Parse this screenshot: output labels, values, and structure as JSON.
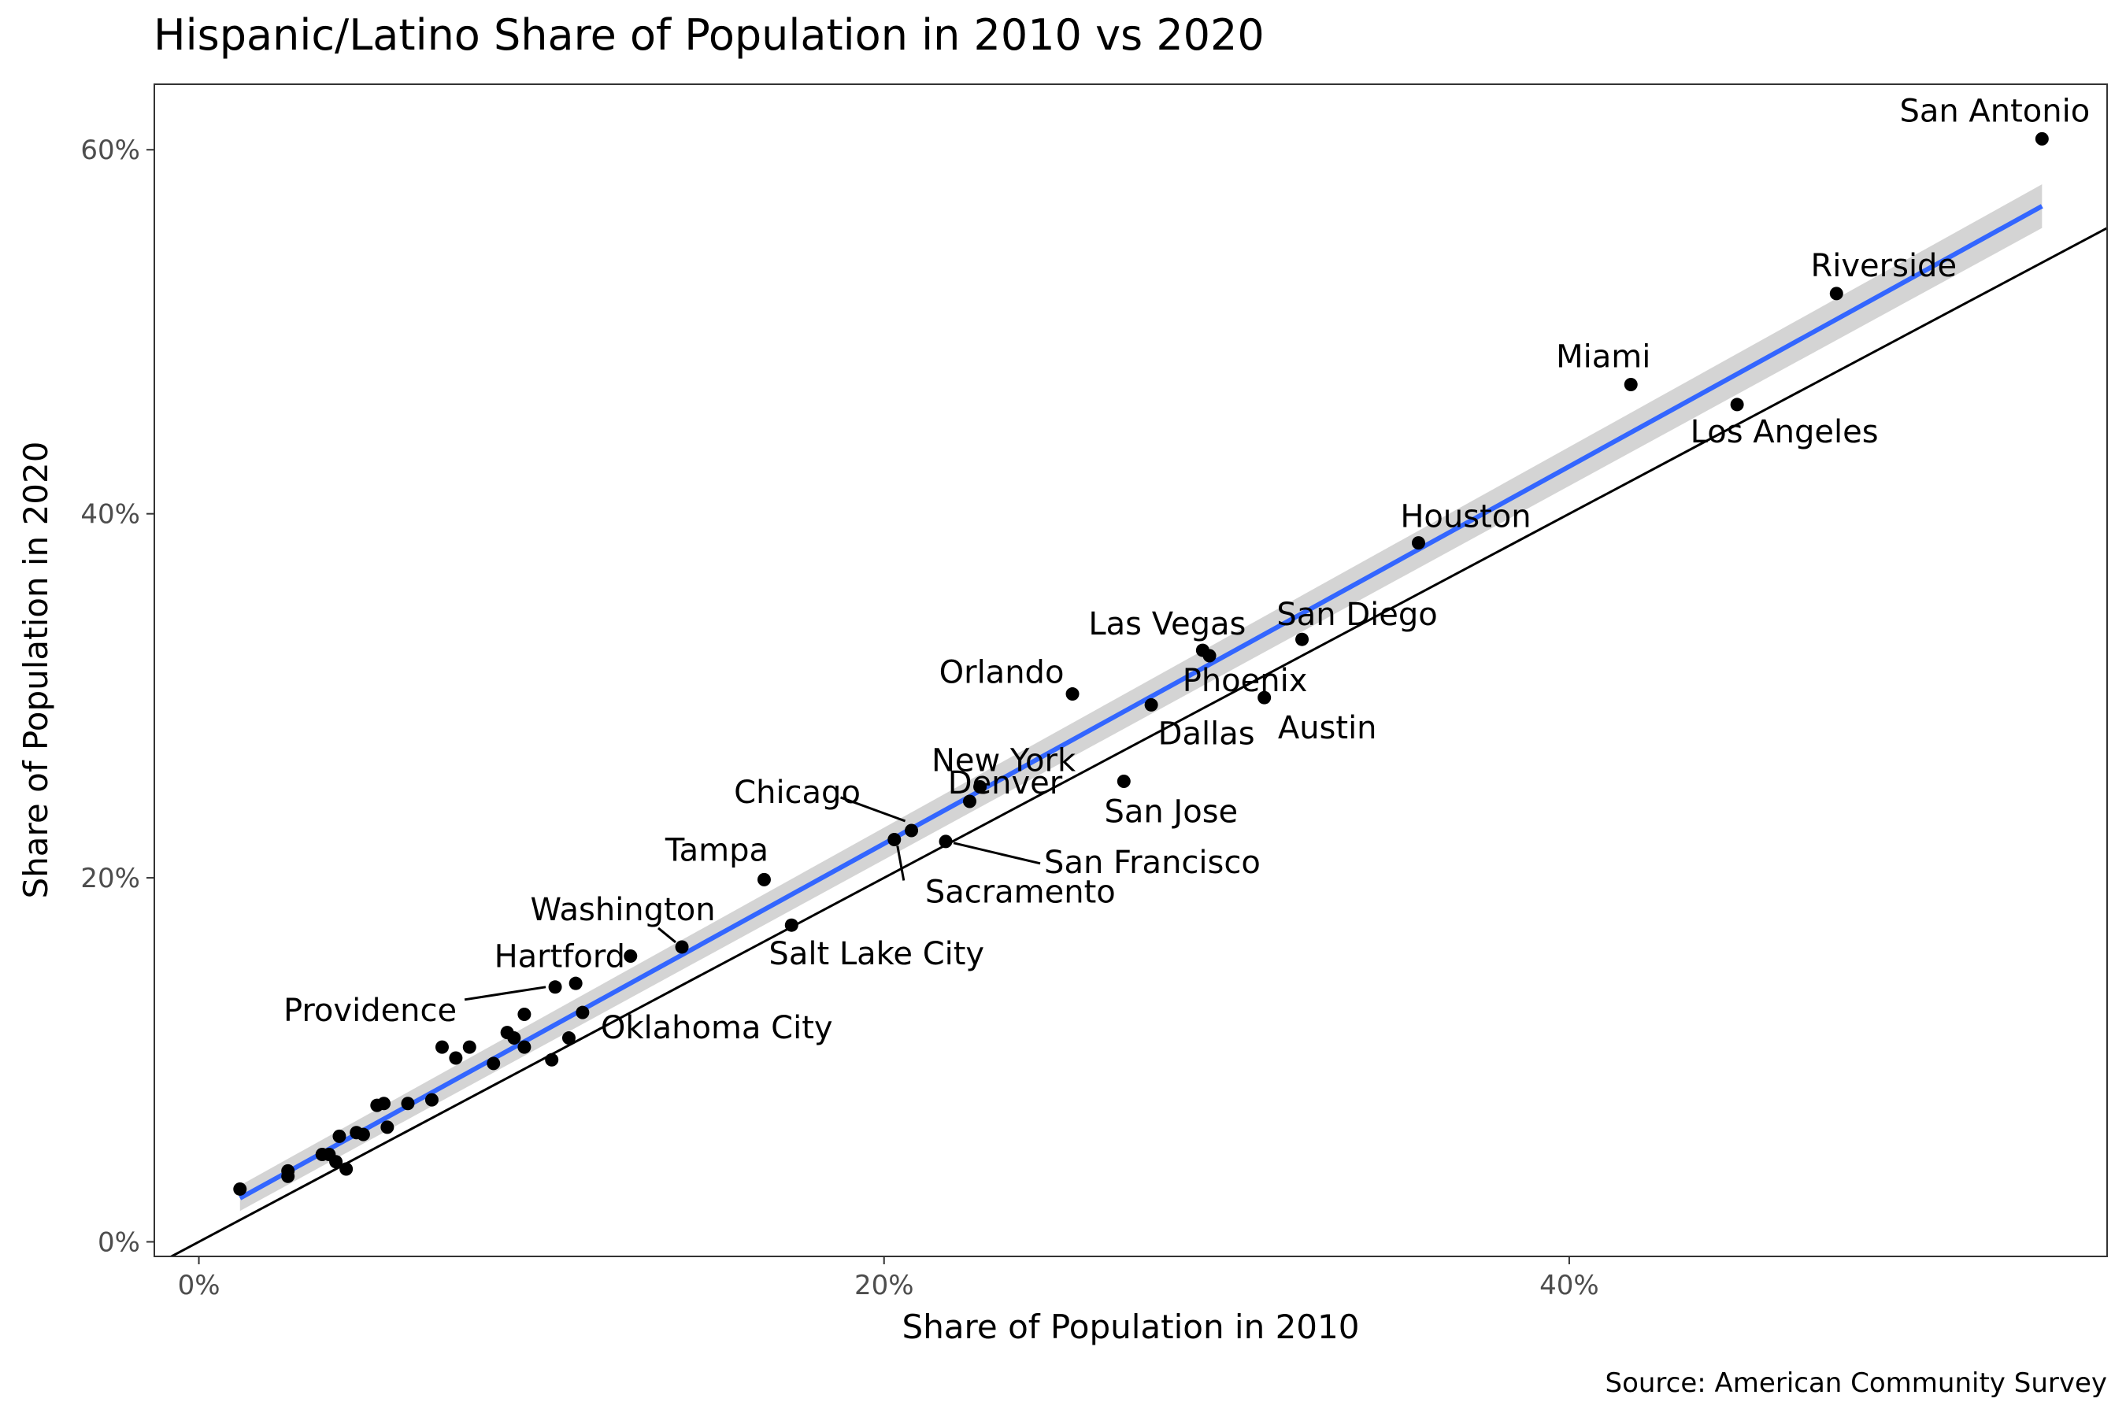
{
  "chart_data": {
    "type": "scatter",
    "title": "Hispanic/Latino Share of Population in 2010 vs 2020",
    "xlabel": "Share of Population in 2010",
    "ylabel": "Share of Population in 2020",
    "caption": "Source: American Community Survey",
    "x_ticks": [
      {
        "value": 0,
        "label": "0%"
      },
      {
        "value": 20,
        "label": "20%"
      },
      {
        "value": 40,
        "label": "40%"
      }
    ],
    "y_ticks": [
      {
        "value": 0,
        "label": "0%"
      },
      {
        "value": 20,
        "label": "20%"
      },
      {
        "value": 40,
        "label": "40%"
      },
      {
        "value": 60,
        "label": "60%"
      }
    ],
    "xlim": [
      -1.3,
      55.7
    ],
    "ylim": [
      -0.8,
      63.6
    ],
    "grid": false,
    "reference_line": {
      "type": "identity",
      "slope": 1,
      "intercept": 0,
      "color": "#000000"
    },
    "trend_line": {
      "method": "linear",
      "x": [
        1.2,
        53.8
      ],
      "y": [
        2.4,
        56.9
      ],
      "ci_halfwidth": [
        0.7,
        1.2
      ],
      "color": "#3366ff",
      "band_color": "#cccccc"
    },
    "labeled_points": [
      {
        "name": "San Antonio",
        "x": 53.8,
        "y": 60.6
      },
      {
        "name": "Riverside",
        "x": 47.8,
        "y": 52.1
      },
      {
        "name": "Miami",
        "x": 41.8,
        "y": 47.1
      },
      {
        "name": "Los Angeles",
        "x": 44.9,
        "y": 46.0
      },
      {
        "name": "Houston",
        "x": 35.6,
        "y": 38.4
      },
      {
        "name": "San Diego",
        "x": 32.2,
        "y": 33.1
      },
      {
        "name": "Las Vegas",
        "x": 29.3,
        "y": 32.5
      },
      {
        "name": "Phoenix",
        "x": 29.5,
        "y": 32.2
      },
      {
        "name": "Austin",
        "x": 31.1,
        "y": 29.9
      },
      {
        "name": "Orlando",
        "x": 25.5,
        "y": 30.1
      },
      {
        "name": "Dallas",
        "x": 27.8,
        "y": 29.5
      },
      {
        "name": "San Jose",
        "x": 27.0,
        "y": 25.3
      },
      {
        "name": "New York",
        "x": 22.8,
        "y": 25.0
      },
      {
        "name": "Denver",
        "x": 22.5,
        "y": 24.2
      },
      {
        "name": "Chicago",
        "x": 20.8,
        "y": 22.6
      },
      {
        "name": "Sacramento",
        "x": 20.3,
        "y": 22.1
      },
      {
        "name": "San Francisco",
        "x": 21.8,
        "y": 22.0
      },
      {
        "name": "Tampa",
        "x": 16.5,
        "y": 19.9
      },
      {
        "name": "Salt Lake City",
        "x": 17.3,
        "y": 17.4
      },
      {
        "name": "Washington",
        "x": 14.1,
        "y": 16.2
      },
      {
        "name": "Hartford",
        "x": 12.6,
        "y": 15.7
      },
      {
        "name": "Providence",
        "x": 10.4,
        "y": 14.0
      },
      {
        "name": "Oklahoma City",
        "x": 11.2,
        "y": 12.6
      }
    ],
    "other_points": [
      {
        "x": 11.0,
        "y": 14.2
      },
      {
        "x": 9.5,
        "y": 12.5
      },
      {
        "x": 9.0,
        "y": 11.5
      },
      {
        "x": 9.2,
        "y": 11.2
      },
      {
        "x": 10.8,
        "y": 11.2
      },
      {
        "x": 7.9,
        "y": 10.7
      },
      {
        "x": 7.1,
        "y": 10.7
      },
      {
        "x": 9.5,
        "y": 10.7
      },
      {
        "x": 7.5,
        "y": 10.1
      },
      {
        "x": 10.3,
        "y": 10.0
      },
      {
        "x": 8.6,
        "y": 9.8
      },
      {
        "x": 5.4,
        "y": 7.6
      },
      {
        "x": 5.2,
        "y": 7.5
      },
      {
        "x": 6.1,
        "y": 7.6
      },
      {
        "x": 6.8,
        "y": 7.8
      },
      {
        "x": 5.5,
        "y": 6.3
      },
      {
        "x": 4.6,
        "y": 6.0
      },
      {
        "x": 4.8,
        "y": 5.9
      },
      {
        "x": 4.1,
        "y": 5.8
      },
      {
        "x": 3.6,
        "y": 4.8
      },
      {
        "x": 3.8,
        "y": 4.8
      },
      {
        "x": 4.0,
        "y": 4.4
      },
      {
        "x": 4.3,
        "y": 4.0
      },
      {
        "x": 2.6,
        "y": 3.9
      },
      {
        "x": 2.6,
        "y": 3.6
      },
      {
        "x": 1.2,
        "y": 2.9
      }
    ]
  }
}
